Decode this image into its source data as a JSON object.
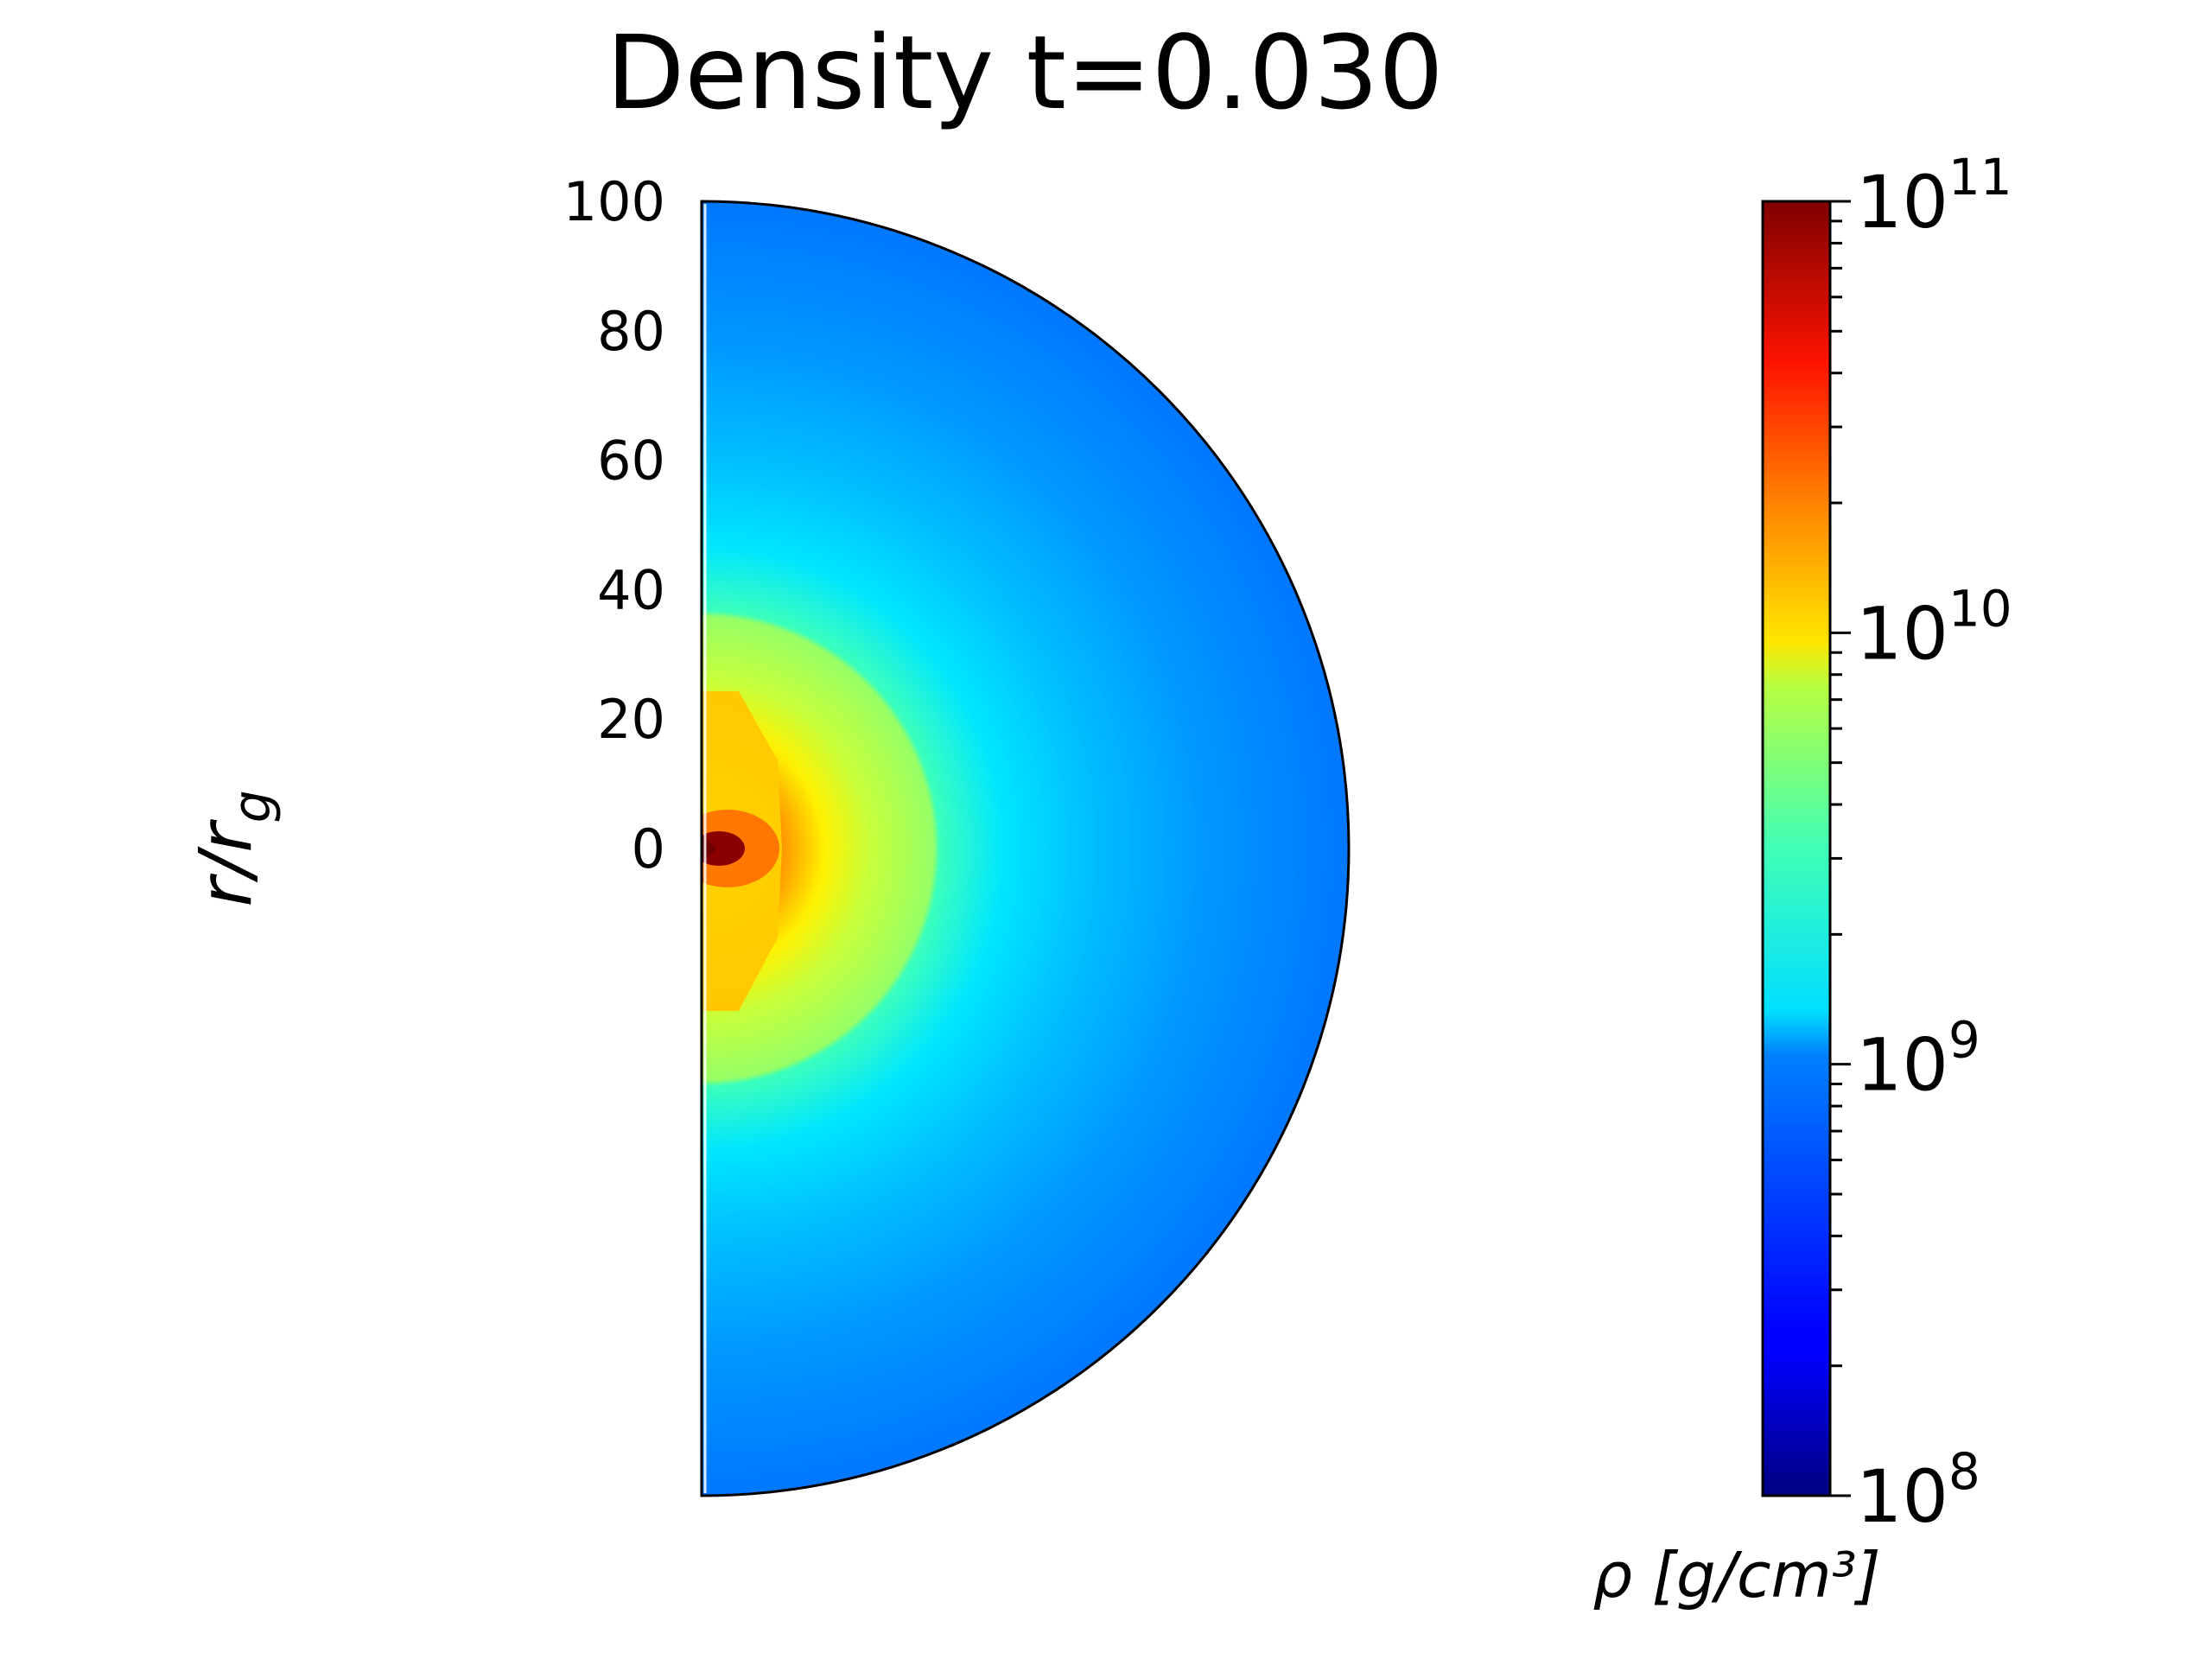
{
  "chart_data": {
    "type": "heatmap",
    "title": "Density t=0.030",
    "ylabel": "r/r_g",
    "yticks": [
      100,
      80,
      60,
      40,
      20,
      0
    ],
    "ylim": [
      -100,
      100
    ],
    "domain": "half-disk (meridional plane), radius 100 r_g",
    "colorbar": {
      "label": "ρ [g/cm³]",
      "scale": "log",
      "colormap": "jet",
      "range": [
        100000000,
        100000000000
      ],
      "ticks": [
        {
          "base": "10",
          "exp": "8"
        },
        {
          "base": "10",
          "exp": "9"
        },
        {
          "base": "10",
          "exp": "10"
        },
        {
          "base": "10",
          "exp": "11"
        }
      ]
    },
    "field": {
      "approx_log10_density": [
        {
          "r": 0,
          "log10_rho": 11.0
        },
        {
          "r": 5,
          "log10_rho": 10.5
        },
        {
          "r": 15,
          "log10_rho": 10.0
        },
        {
          "r": 27,
          "log10_rho": 9.7
        },
        {
          "r": 40,
          "log10_rho": 9.4
        },
        {
          "r": 55,
          "log10_rho": 9.1
        },
        {
          "r": 75,
          "log10_rho": 8.85
        },
        {
          "r": 100,
          "log10_rho": 8.75
        }
      ]
    }
  }
}
